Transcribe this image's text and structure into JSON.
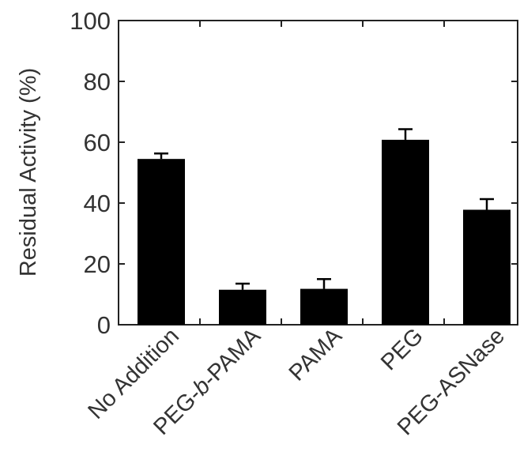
{
  "chart_data": {
    "type": "bar",
    "title": "",
    "xlabel": "",
    "ylabel": "Residual Activity (%)",
    "ylim": [
      0,
      100
    ],
    "yticks": [
      0,
      20,
      40,
      60,
      80,
      100
    ],
    "ytick_labels": [
      "0",
      "20",
      "40",
      "60",
      "80",
      "100"
    ],
    "categories": [
      "No Addition",
      "PEG-b-PAMA",
      "PAMA",
      "PEG",
      "PEG-ASNase"
    ],
    "category_label_parts": [
      [
        {
          "text": "No Addition",
          "italic": false
        }
      ],
      [
        {
          "text": "PEG-",
          "italic": false
        },
        {
          "text": "b",
          "italic": true
        },
        {
          "text": "-PAMA",
          "italic": false
        }
      ],
      [
        {
          "text": "PAMA",
          "italic": false
        }
      ],
      [
        {
          "text": "PEG",
          "italic": false
        }
      ],
      [
        {
          "text": "PEG-ASNase",
          "italic": false
        }
      ]
    ],
    "values": [
      54.5,
      11.5,
      11.8,
      60.8,
      37.8
    ],
    "errors": [
      1.8,
      2.0,
      3.2,
      3.5,
      3.5
    ],
    "bar_color": "#000000",
    "grid": false,
    "legend": "none"
  }
}
